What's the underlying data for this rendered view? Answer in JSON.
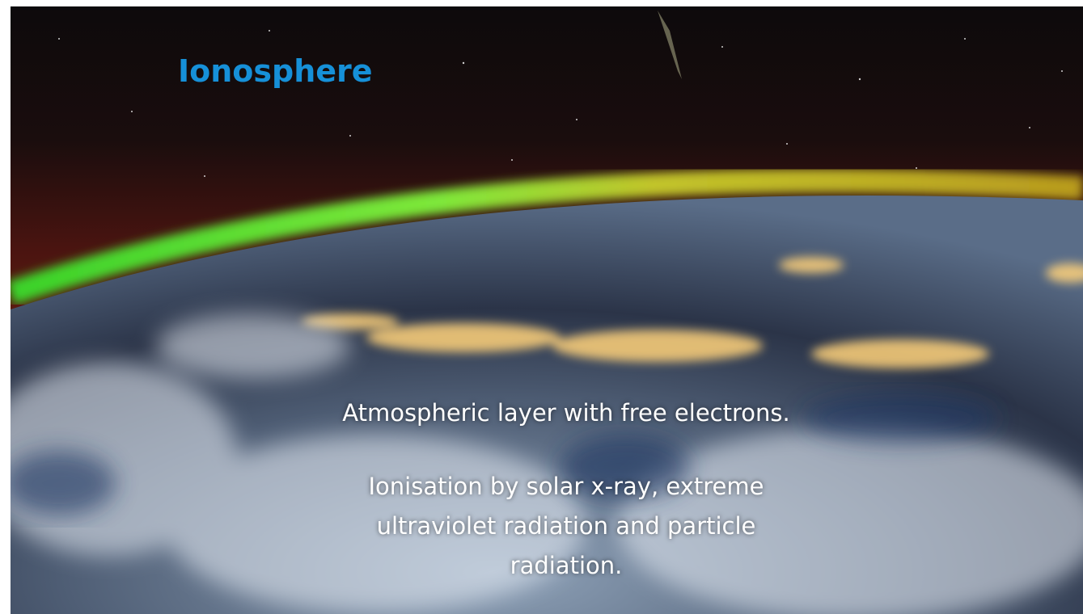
{
  "slide": {
    "title": "Ionosphere",
    "paragraphs": [
      "Atmospheric layer with free electrons.",
      "Ionisation by solar x-ray, extreme ultraviolet radiation and particle radiation."
    ]
  }
}
